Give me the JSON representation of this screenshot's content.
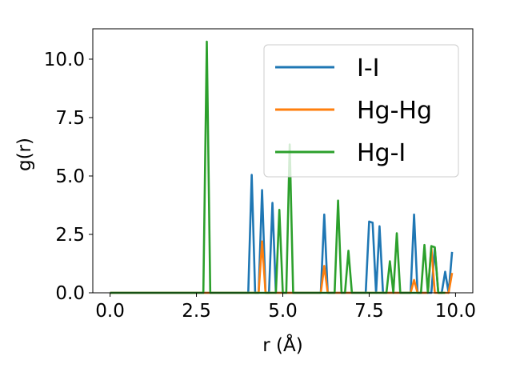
{
  "chart_data": {
    "type": "line",
    "xlabel": "r (Å)",
    "ylabel": "g(r)",
    "xlim": [
      -0.5,
      10.5
    ],
    "ylim": [
      0,
      11.3
    ],
    "x_ticks": [
      0.0,
      2.5,
      5.0,
      7.5,
      10.0
    ],
    "x_tick_labels": [
      "0.0",
      "2.5",
      "5.0",
      "7.5",
      "10.0"
    ],
    "y_ticks": [
      0.0,
      2.5,
      5.0,
      7.5,
      10.0
    ],
    "y_tick_labels": [
      "0.0",
      "2.5",
      "5.0",
      "7.5",
      "10.0"
    ],
    "grid": false,
    "legend_position": "top-right",
    "series": [
      {
        "name": "I-I",
        "color": "#1f77b4",
        "x": [
          0.0,
          4.0,
          4.1,
          4.2,
          4.3,
          4.4,
          4.5,
          4.6,
          4.7,
          4.8,
          6.1,
          6.2,
          6.3,
          7.4,
          7.5,
          7.6,
          7.7,
          7.8,
          7.9,
          8.7,
          8.8,
          8.9,
          9.3,
          9.4,
          9.5,
          9.6,
          9.7,
          9.8,
          9.9
        ],
        "y": [
          0.0,
          0.0,
          5.05,
          0.0,
          0.0,
          4.4,
          0.0,
          0.0,
          3.85,
          0.0,
          0.0,
          3.35,
          0.0,
          0.0,
          3.05,
          3.0,
          0.0,
          2.85,
          0.0,
          0.0,
          3.35,
          0.0,
          0.0,
          1.9,
          0.0,
          0.0,
          0.9,
          0.0,
          1.75
        ]
      },
      {
        "name": "Hg-Hg",
        "color": "#ff7f0e",
        "x": [
          0.0,
          4.3,
          4.4,
          4.5,
          6.1,
          6.2,
          6.3,
          8.7,
          8.8,
          8.9,
          9.2,
          9.3,
          9.4,
          9.8,
          9.9
        ],
        "y": [
          0.0,
          0.0,
          2.2,
          0.0,
          0.0,
          1.15,
          0.0,
          0.0,
          0.55,
          0.0,
          0.0,
          1.95,
          0.0,
          0.0,
          0.85
        ]
      },
      {
        "name": "Hg-I",
        "color": "#2ca02c",
        "x": [
          0.0,
          2.7,
          2.8,
          2.9,
          4.8,
          4.9,
          5.0,
          5.1,
          5.2,
          5.3,
          6.5,
          6.6,
          6.7,
          6.8,
          6.9,
          7.0,
          7.9,
          8.0,
          8.1,
          8.2,
          8.3,
          8.4,
          8.9,
          9.0,
          9.1,
          9.2,
          9.3,
          9.4,
          9.5,
          9.6,
          9.7
        ],
        "y": [
          0.0,
          0.0,
          10.75,
          0.0,
          0.0,
          3.55,
          0.0,
          0.0,
          6.35,
          0.0,
          0.0,
          3.95,
          0.0,
          0.0,
          1.8,
          0.0,
          0.0,
          0.0,
          1.35,
          0.0,
          2.55,
          0.0,
          0.0,
          0.0,
          2.05,
          0.0,
          2.0,
          1.95,
          0.0,
          0.0,
          0.0
        ]
      }
    ]
  }
}
